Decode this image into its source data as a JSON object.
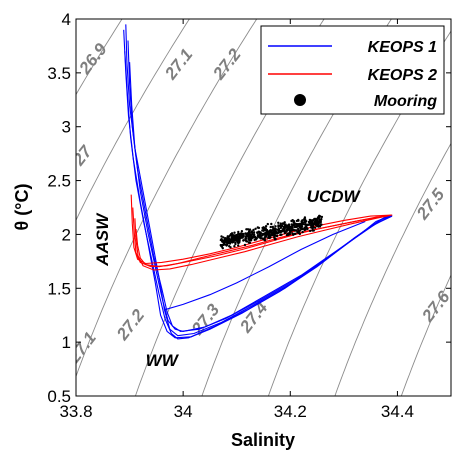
{
  "chart_data": {
    "type": "scatter",
    "xlabel": "Salinity",
    "ylabel": "θ (°C)",
    "xlim": [
      33.8,
      34.5
    ],
    "ylim": [
      0.5,
      4
    ],
    "x_ticks": [
      "33.8",
      "34",
      "34.2",
      "34.4"
    ],
    "x_tick_values": [
      33.8,
      34.0,
      34.2,
      34.4
    ],
    "y_ticks": [
      "0.5",
      "1",
      "1.5",
      "2",
      "2.5",
      "3",
      "3.5",
      "4"
    ],
    "y_tick_values": [
      0.5,
      1,
      1.5,
      2,
      2.5,
      3,
      3.5,
      4
    ],
    "grid": false,
    "legend_position": "top-right",
    "isopycnals": [
      {
        "label": "26.9",
        "value": 26.9,
        "label_x": 33.84,
        "label_y": 3.6
      },
      {
        "label": "27",
        "value": 27.0,
        "label_x": 33.82,
        "label_y": 2.7
      },
      {
        "label": "27.1",
        "value": 27.1,
        "label_x": 34.0,
        "label_y": 3.55
      },
      {
        "label": "27.1",
        "value": 27.1,
        "label_x": 33.82,
        "label_y": 0.92
      },
      {
        "label": "27.2",
        "value": 27.2,
        "label_x": 34.09,
        "label_y": 3.55
      },
      {
        "label": "27.2",
        "value": 27.2,
        "label_x": 33.91,
        "label_y": 1.13
      },
      {
        "label": "27.3",
        "value": 27.3,
        "label_x": 34.05,
        "label_y": 1.18
      },
      {
        "label": "27.4",
        "value": 27.4,
        "label_x": 34.14,
        "label_y": 1.2
      },
      {
        "label": "27.5",
        "value": 27.5,
        "label_x": 34.47,
        "label_y": 2.25
      },
      {
        "label": "27.6",
        "value": 27.6,
        "label_x": 34.48,
        "label_y": 1.3
      }
    ],
    "water_masses": [
      {
        "label": "AASW",
        "x": 33.86,
        "y": 1.95,
        "rotated": true
      },
      {
        "label": "WW",
        "x": 33.96,
        "y": 0.78,
        "rotated": false
      },
      {
        "label": "UCDW",
        "x": 34.28,
        "y": 2.3,
        "rotated": false
      }
    ],
    "series": [
      {
        "name": "KEOPS 1",
        "color": "#0000ff",
        "kind": "line",
        "profiles": [
          [
            [
              33.893,
              3.95
            ],
            [
              33.895,
              3.6
            ],
            [
              33.9,
              3.2
            ],
            [
              33.91,
              2.8
            ],
            [
              33.925,
              2.4
            ],
            [
              33.94,
              2.0
            ],
            [
              33.955,
              1.6
            ],
            [
              33.965,
              1.3
            ],
            [
              33.975,
              1.12
            ],
            [
              33.99,
              1.06
            ],
            [
              34.02,
              1.08
            ],
            [
              34.07,
              1.18
            ],
            [
              34.13,
              1.34
            ],
            [
              34.2,
              1.54
            ],
            [
              34.27,
              1.78
            ],
            [
              34.33,
              2.0
            ],
            [
              34.36,
              2.12
            ],
            [
              34.39,
              2.18
            ]
          ],
          [
            [
              33.889,
              3.9
            ],
            [
              33.893,
              3.5
            ],
            [
              33.898,
              3.1
            ],
            [
              33.907,
              2.7
            ],
            [
              33.92,
              2.3
            ],
            [
              33.935,
              1.9
            ],
            [
              33.948,
              1.55
            ],
            [
              33.958,
              1.25
            ],
            [
              33.97,
              1.1
            ],
            [
              33.985,
              1.04
            ],
            [
              34.015,
              1.05
            ],
            [
              34.06,
              1.15
            ],
            [
              34.12,
              1.3
            ],
            [
              34.19,
              1.5
            ],
            [
              34.26,
              1.74
            ],
            [
              34.32,
              1.97
            ],
            [
              34.37,
              2.14
            ],
            [
              34.39,
              2.18
            ]
          ],
          [
            [
              33.897,
              3.8
            ],
            [
              33.9,
              3.4
            ],
            [
              33.905,
              3.0
            ],
            [
              33.915,
              2.6
            ],
            [
              33.93,
              2.2
            ],
            [
              33.945,
              1.8
            ],
            [
              33.96,
              1.5
            ],
            [
              33.97,
              1.28
            ],
            [
              33.98,
              1.15
            ],
            [
              33.995,
              1.1
            ],
            [
              34.03,
              1.12
            ],
            [
              34.08,
              1.22
            ],
            [
              34.14,
              1.38
            ],
            [
              34.21,
              1.58
            ],
            [
              34.28,
              1.82
            ],
            [
              34.34,
              2.04
            ],
            [
              34.38,
              2.17
            ]
          ],
          [
            [
              33.891,
              3.7
            ],
            [
              33.896,
              3.3
            ],
            [
              33.902,
              2.9
            ],
            [
              33.912,
              2.5
            ],
            [
              33.927,
              2.1
            ],
            [
              33.942,
              1.75
            ],
            [
              33.955,
              1.45
            ],
            [
              33.966,
              1.22
            ],
            [
              33.978,
              1.08
            ],
            [
              33.99,
              1.03
            ],
            [
              34.01,
              1.04
            ],
            [
              34.05,
              1.12
            ],
            [
              34.11,
              1.27
            ],
            [
              34.18,
              1.47
            ],
            [
              34.25,
              1.7
            ],
            [
              34.31,
              1.93
            ],
            [
              34.36,
              2.1
            ],
            [
              34.39,
              2.17
            ]
          ],
          [
            [
              33.9,
              3.6
            ],
            [
              33.904,
              3.2
            ],
            [
              33.91,
              2.8
            ],
            [
              33.92,
              2.4
            ],
            [
              33.935,
              2.0
            ],
            [
              33.95,
              1.65
            ],
            [
              33.962,
              1.38
            ],
            [
              33.972,
              1.2
            ],
            [
              33.985,
              1.12
            ],
            [
              34.0,
              1.1
            ],
            [
              34.04,
              1.14
            ],
            [
              34.09,
              1.25
            ],
            [
              34.15,
              1.42
            ],
            [
              34.22,
              1.62
            ],
            [
              34.29,
              1.86
            ],
            [
              34.35,
              2.07
            ],
            [
              34.39,
              2.18
            ]
          ],
          [
            [
              33.965,
              1.3
            ],
            [
              34.0,
              1.35
            ],
            [
              34.05,
              1.44
            ],
            [
              34.1,
              1.55
            ],
            [
              34.16,
              1.7
            ],
            [
              34.22,
              1.86
            ],
            [
              34.28,
              2.0
            ],
            [
              34.34,
              2.12
            ]
          ]
        ]
      },
      {
        "name": "KEOPS 2",
        "color": "#ff0000",
        "kind": "line",
        "profiles": [
          [
            [
              33.903,
              2.37
            ],
            [
              33.905,
              2.1
            ],
            [
              33.908,
              1.88
            ],
            [
              33.915,
              1.77
            ],
            [
              33.93,
              1.73
            ],
            [
              33.96,
              1.74
            ],
            [
              34.0,
              1.77
            ],
            [
              34.05,
              1.82
            ],
            [
              34.1,
              1.88
            ],
            [
              34.15,
              1.95
            ],
            [
              34.2,
              2.02
            ],
            [
              34.25,
              2.08
            ],
            [
              34.3,
              2.13
            ],
            [
              34.35,
              2.17
            ],
            [
              34.39,
              2.18
            ]
          ],
          [
            [
              33.906,
              2.25
            ],
            [
              33.909,
              2.0
            ],
            [
              33.912,
              1.83
            ],
            [
              33.92,
              1.74
            ],
            [
              33.94,
              1.7
            ],
            [
              33.97,
              1.71
            ],
            [
              34.01,
              1.75
            ],
            [
              34.06,
              1.8
            ],
            [
              34.11,
              1.86
            ],
            [
              34.16,
              1.93
            ],
            [
              34.21,
              2.0
            ],
            [
              34.26,
              2.06
            ],
            [
              34.31,
              2.11
            ],
            [
              34.36,
              2.16
            ],
            [
              34.39,
              2.18
            ]
          ],
          [
            [
              33.91,
              2.15
            ],
            [
              33.912,
              1.95
            ],
            [
              33.916,
              1.8
            ],
            [
              33.925,
              1.71
            ],
            [
              33.945,
              1.67
            ],
            [
              33.975,
              1.68
            ],
            [
              34.015,
              1.72
            ],
            [
              34.065,
              1.78
            ],
            [
              34.115,
              1.84
            ],
            [
              34.165,
              1.91
            ],
            [
              34.215,
              1.98
            ],
            [
              34.265,
              2.04
            ],
            [
              34.315,
              2.1
            ],
            [
              34.36,
              2.15
            ],
            [
              34.39,
              2.18
            ]
          ],
          [
            [
              33.912,
              2.05
            ],
            [
              33.915,
              1.9
            ],
            [
              33.92,
              1.78
            ],
            [
              33.93,
              1.72
            ],
            [
              33.955,
              1.7
            ],
            [
              33.99,
              1.73
            ],
            [
              34.03,
              1.78
            ],
            [
              34.08,
              1.84
            ],
            [
              34.13,
              1.9
            ],
            [
              34.18,
              1.97
            ],
            [
              34.23,
              2.03
            ],
            [
              34.28,
              2.08
            ],
            [
              34.33,
              2.13
            ],
            [
              34.38,
              2.17
            ]
          ]
        ]
      },
      {
        "name": "Mooring",
        "color": "#000000",
        "kind": "scatter",
        "cluster": {
          "x_min": 34.07,
          "x_max": 34.26,
          "y_min": 1.87,
          "y_max": 2.16,
          "points": 600
        }
      }
    ]
  }
}
